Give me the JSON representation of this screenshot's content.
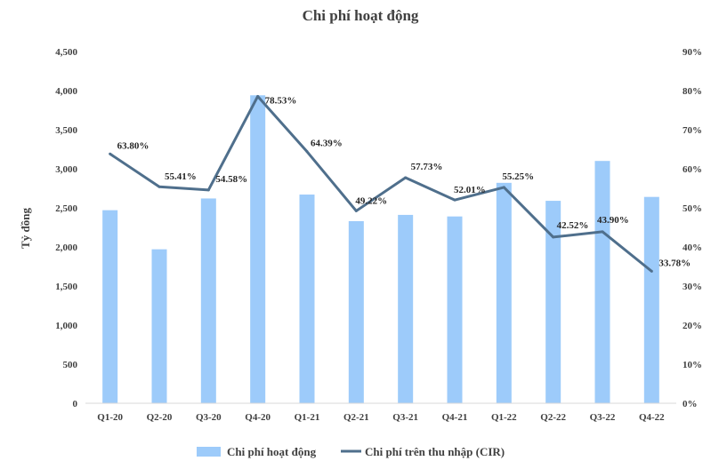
{
  "chart_data": {
    "type": "bar+line",
    "title": "Chi phí hoạt động",
    "ylabel": "Tỷ đồng",
    "y2label": "",
    "categories": [
      "Q1-20",
      "Q2-20",
      "Q3-20",
      "Q4-20",
      "Q1-21",
      "Q2-21",
      "Q3-21",
      "Q4-21",
      "Q1-22",
      "Q2-22",
      "Q3-22",
      "Q4-22"
    ],
    "series": [
      {
        "name": "Chi phí hoạt động",
        "type": "bar",
        "axis": "left",
        "color": "#9DCBFA",
        "values": [
          2470,
          1970,
          2620,
          3940,
          2670,
          2330,
          2410,
          2390,
          2820,
          2590,
          3100,
          2640
        ]
      },
      {
        "name": "Chi phí trên thu nhập (CIR)",
        "type": "line",
        "axis": "right",
        "color": "#4F6F8C",
        "values": [
          63.8,
          55.41,
          54.58,
          78.53,
          64.39,
          49.22,
          57.73,
          52.01,
          55.25,
          42.52,
          43.9,
          33.78
        ],
        "labels": [
          "63.80%",
          "55.41%",
          "54.58%",
          "78.53%",
          "64.39%",
          "49.22%",
          "57.73%",
          "52.01%",
          "55.25%",
          "42.52%",
          "43.90%",
          "33.78%"
        ]
      }
    ],
    "yticks": [
      "0",
      "500",
      "1,000",
      "1,500",
      "2,000",
      "2,500",
      "3,000",
      "3,500",
      "4,000",
      "4,500"
    ],
    "y2ticks": [
      "0%",
      "10%",
      "20%",
      "30%",
      "40%",
      "50%",
      "60%",
      "70%",
      "80%",
      "90%"
    ],
    "ylim": [
      0,
      4500
    ],
    "y2lim": [
      0,
      90
    ],
    "grid": false,
    "legend": "bottom"
  }
}
